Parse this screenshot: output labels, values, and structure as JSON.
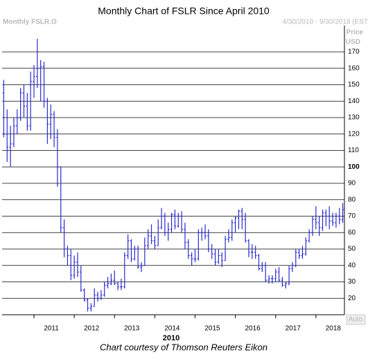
{
  "chart_data": {
    "type": "ohlc",
    "title": "Monthly Chart of FSLR Since April 2010",
    "instrument": "Monthly FSLR.O",
    "date_range": "4/30/2010 - 9/30/2018 (EST",
    "y_axis_label": [
      "Price",
      "USD"
    ],
    "x_axis_label": "2010",
    "scale_mode": "Auto",
    "caption": "Chart courtesy of Thomson Reuters Eikon",
    "color": "#2a2ad0",
    "grid": true,
    "bold_tick": 100,
    "ylim": [
      10,
      186
    ],
    "yticks": [
      20,
      30,
      40,
      50,
      60,
      70,
      80,
      90,
      100,
      110,
      120,
      130,
      140,
      150,
      160,
      170
    ],
    "xlim": [
      -0.5,
      101.5
    ],
    "xticks": [
      {
        "value": 9,
        "label": "2011"
      },
      {
        "value": 21,
        "label": "2012"
      },
      {
        "value": 33,
        "label": "2013"
      },
      {
        "value": 45,
        "label": "2014"
      },
      {
        "value": 57,
        "label": "2015"
      },
      {
        "value": 69,
        "label": "2016"
      },
      {
        "value": 81,
        "label": "2017"
      },
      {
        "value": 93,
        "label": "2018"
      }
    ],
    "categories": [
      null,
      null,
      null,
      null,
      null,
      null,
      null,
      null,
      null,
      null,
      null,
      null,
      null,
      null,
      null,
      null,
      null,
      null,
      null,
      null,
      null,
      null,
      null,
      null,
      null,
      null,
      null,
      null,
      null,
      null,
      null,
      null,
      null,
      null,
      null,
      null,
      null,
      null,
      null,
      null,
      null,
      null,
      null,
      null,
      null,
      null,
      null,
      null,
      null,
      null,
      null,
      null,
      null,
      null,
      null,
      null,
      null,
      null,
      null,
      null,
      null,
      null,
      null,
      null,
      null,
      null,
      null,
      null,
      null,
      null,
      null,
      null,
      null,
      null,
      null,
      null,
      null,
      null,
      null,
      null,
      null,
      null,
      null,
      null,
      null,
      null,
      null,
      null,
      null,
      null,
      null,
      null,
      null,
      null,
      null,
      null,
      null,
      null,
      null,
      null,
      null,
      null
    ],
    "open": [
      145,
      120,
      112,
      114,
      125,
      130,
      145,
      137,
      125,
      152,
      155,
      160,
      161,
      140,
      126,
      132,
      118,
      100,
      63,
      50,
      46,
      34,
      42,
      36,
      25,
      19,
      14,
      15,
      22,
      20,
      22,
      28,
      29,
      31,
      29,
      27,
      27,
      46,
      55,
      44,
      50,
      39,
      40,
      52,
      58,
      55,
      52,
      63,
      70,
      60,
      62,
      71,
      64,
      70,
      62,
      54,
      46,
      44,
      44,
      60,
      60,
      58,
      50,
      47,
      42,
      46,
      43,
      56,
      57,
      66,
      69,
      73,
      68,
      55,
      48,
      48,
      46,
      38,
      40,
      31,
      32,
      32,
      36,
      31,
      28,
      29,
      38,
      40,
      48,
      46,
      47,
      55,
      60,
      68,
      66,
      63,
      72,
      70,
      67,
      66,
      70,
      68
    ],
    "high": [
      153,
      135,
      125,
      130,
      135,
      148,
      150,
      145,
      158,
      162,
      178,
      165,
      164,
      142,
      138,
      134,
      123,
      100,
      68,
      52,
      50,
      46,
      48,
      40,
      26,
      20,
      17,
      26,
      24,
      25,
      30,
      33,
      35,
      37,
      30,
      32,
      48,
      59,
      56,
      52,
      52,
      42,
      57,
      62,
      65,
      58,
      68,
      75,
      72,
      66,
      72,
      74,
      72,
      73,
      66,
      56,
      48,
      50,
      62,
      63,
      65,
      62,
      53,
      50,
      50,
      48,
      58,
      62,
      68,
      70,
      74,
      75,
      72,
      56,
      53,
      52,
      47,
      42,
      42,
      34,
      34,
      38,
      39,
      33,
      30,
      40,
      42,
      50,
      50,
      52,
      57,
      62,
      70,
      76,
      70,
      74,
      74,
      76,
      72,
      72,
      75,
      78
    ],
    "low": [
      118,
      103,
      100,
      112,
      120,
      128,
      130,
      122,
      122,
      142,
      148,
      140,
      136,
      114,
      117,
      112,
      88,
      60,
      45,
      40,
      31,
      32,
      33,
      24,
      18,
      12,
      12,
      15,
      18,
      19,
      21,
      26,
      28,
      28,
      25,
      25,
      26,
      44,
      42,
      43,
      38,
      36,
      40,
      50,
      53,
      50,
      52,
      62,
      58,
      55,
      60,
      62,
      63,
      60,
      50,
      44,
      40,
      42,
      43,
      55,
      56,
      48,
      44,
      40,
      41,
      39,
      43,
      54,
      55,
      60,
      62,
      62,
      54,
      45,
      44,
      44,
      37,
      36,
      30,
      29,
      29,
      30,
      30,
      27,
      26,
      28,
      36,
      39,
      44,
      44,
      46,
      54,
      58,
      62,
      58,
      61,
      64,
      62,
      64,
      63,
      65,
      66
    ],
    "close": [
      120,
      112,
      114,
      125,
      130,
      145,
      137,
      125,
      152,
      155,
      160,
      161,
      140,
      126,
      132,
      118,
      100,
      63,
      50,
      46,
      34,
      42,
      36,
      25,
      19,
      14,
      15,
      22,
      20,
      22,
      28,
      29,
      31,
      29,
      27,
      27,
      46,
      55,
      44,
      50,
      39,
      40,
      52,
      58,
      55,
      52,
      63,
      70,
      60,
      62,
      71,
      64,
      70,
      62,
      54,
      46,
      44,
      44,
      60,
      60,
      58,
      50,
      47,
      42,
      46,
      43,
      56,
      57,
      66,
      69,
      73,
      68,
      55,
      48,
      48,
      46,
      38,
      40,
      31,
      32,
      32,
      36,
      31,
      28,
      29,
      38,
      40,
      48,
      46,
      47,
      55,
      60,
      68,
      66,
      63,
      72,
      70,
      67,
      66,
      70,
      68,
      74
    ]
  }
}
